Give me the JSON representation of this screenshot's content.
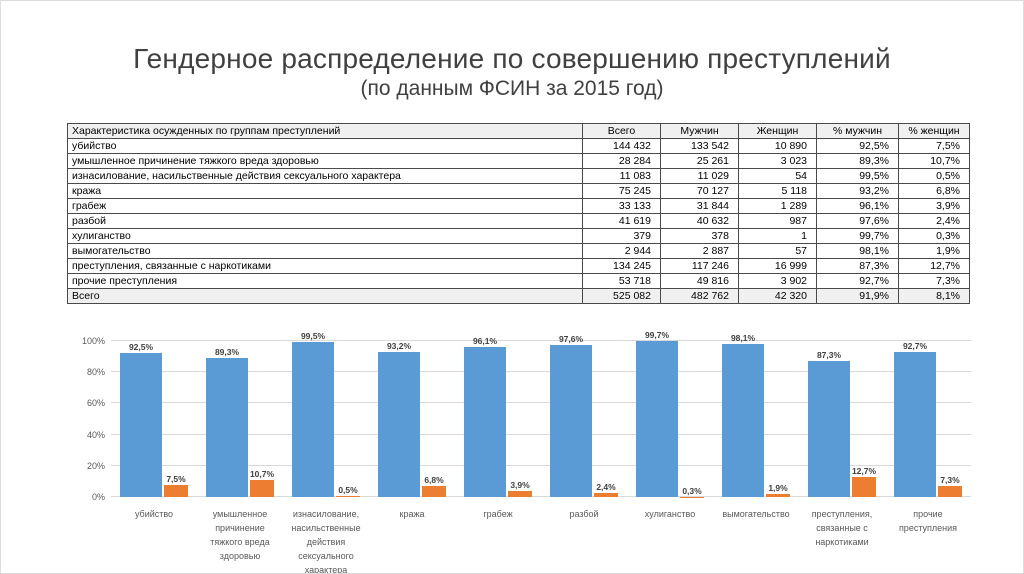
{
  "title": "Гендерное распределение по совершению преступлений",
  "subtitle": "(по данным ФСИН за 2015 год)",
  "table": {
    "headers": [
      "Характеристика осужденных по группам преступлений",
      "Всего",
      "Мужчин",
      "Женщин",
      "% мужчин",
      "% женщин"
    ],
    "rows": [
      [
        "убийство",
        "144 432",
        "133 542",
        "10 890",
        "92,5%",
        "7,5%"
      ],
      [
        "умышленное причинение тяжкого вреда здоровью",
        "28 284",
        "25 261",
        "3 023",
        "89,3%",
        "10,7%"
      ],
      [
        "изнасилование, насильственные действия сексуального характера",
        "11 083",
        "11 029",
        "54",
        "99,5%",
        "0,5%"
      ],
      [
        "кража",
        "75 245",
        "70 127",
        "5 118",
        "93,2%",
        "6,8%"
      ],
      [
        "грабеж",
        "33 133",
        "31 844",
        "1 289",
        "96,1%",
        "3,9%"
      ],
      [
        "разбой",
        "41 619",
        "40 632",
        "987",
        "97,6%",
        "2,4%"
      ],
      [
        "хулиганство",
        "379",
        "378",
        "1",
        "99,7%",
        "0,3%"
      ],
      [
        "вымогательство",
        "2 944",
        "2 887",
        "57",
        "98,1%",
        "1,9%"
      ],
      [
        "преступления, связанные с наркотиками",
        "134 245",
        "117 246",
        "16 999",
        "87,3%",
        "12,7%"
      ],
      [
        "прочие преступления",
        "53 718",
        "49 816",
        "3 902",
        "92,7%",
        "7,3%"
      ]
    ],
    "total_row": [
      "Всего",
      "525 082",
      "482 762",
      "42 320",
      "91,9%",
      "8,1%"
    ]
  },
  "chart_data": {
    "type": "bar",
    "title": "Гендерное распределение по совершению преступлений (по данным ФСИН за 2015 год)",
    "categories": [
      "убийство",
      "умышленное причинение тяжкого вреда здоровью",
      "изнасилование, насильственные действия сексуального характера",
      "кража",
      "грабеж",
      "разбой",
      "хулиганство",
      "вымогательство",
      "преступления, связанные с наркотиками",
      "прочие преступления"
    ],
    "series": [
      {
        "name": "% мужчин",
        "color": "#5B9BD5",
        "values": [
          92.5,
          89.3,
          99.5,
          93.2,
          96.1,
          97.6,
          99.7,
          98.1,
          87.3,
          92.7
        ],
        "labels": [
          "92,5%",
          "89,3%",
          "99,5%",
          "93,2%",
          "96,1%",
          "97,6%",
          "99,7%",
          "98,1%",
          "87,3%",
          "92,7%"
        ]
      },
      {
        "name": "% женщин",
        "color": "#ED7D31",
        "values": [
          7.5,
          10.7,
          0.5,
          6.8,
          3.9,
          2.4,
          0.3,
          1.9,
          12.7,
          7.3
        ],
        "labels": [
          "7,5%",
          "10,7%",
          "0,5%",
          "6,8%",
          "3,9%",
          "2,4%",
          "0,3%",
          "1,9%",
          "12,7%",
          "7,3%"
        ]
      }
    ],
    "y_ticks": [
      "0%",
      "20%",
      "40%",
      "60%",
      "80%",
      "100%"
    ],
    "ylim": [
      0,
      100
    ],
    "xlabel": "",
    "ylabel": "",
    "grid": true,
    "legend_position": "none"
  }
}
